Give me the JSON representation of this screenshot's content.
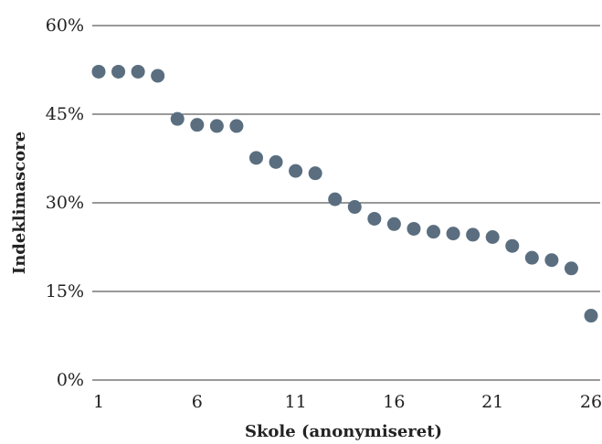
{
  "chart_data": {
    "type": "scatter",
    "title": "",
    "xlabel": "Skole (anonymiseret)",
    "ylabel": "Indeklimascore",
    "xlim": [
      0.5,
      26.5
    ],
    "ylim": [
      0,
      60
    ],
    "x_ticks": [
      1,
      6,
      11,
      16,
      21,
      26
    ],
    "x_tick_labels": [
      "1",
      "6",
      "11",
      "16",
      "21",
      "26"
    ],
    "y_ticks": [
      0,
      15,
      30,
      45,
      60
    ],
    "y_tick_labels": [
      "0%",
      "15%",
      "30%",
      "45%",
      "60%"
    ],
    "grid": "horizontal",
    "legend": "none",
    "marker_color": "#5a6e80",
    "series": [
      {
        "x": [
          1,
          2,
          3,
          4,
          5,
          6,
          7,
          8,
          9,
          10,
          11,
          12,
          13,
          14,
          15,
          16,
          17,
          18,
          19,
          20,
          21,
          22,
          23,
          24,
          25,
          26
        ],
        "values": [
          52.2,
          52.2,
          52.2,
          51.5,
          44.2,
          43.2,
          43.0,
          43.0,
          37.6,
          36.9,
          35.4,
          35.0,
          30.6,
          29.3,
          27.3,
          26.4,
          25.6,
          25.1,
          24.8,
          24.6,
          24.2,
          22.7,
          20.7,
          20.3,
          18.9,
          10.9
        ]
      }
    ]
  }
}
